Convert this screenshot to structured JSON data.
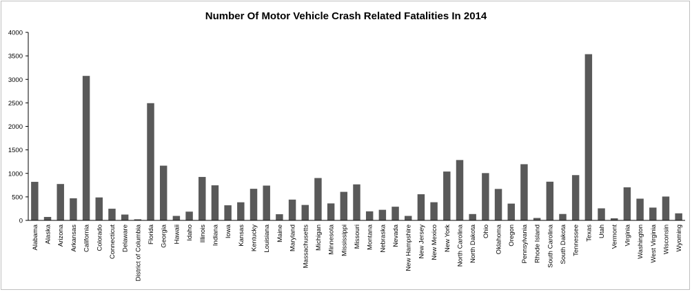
{
  "chart_data": {
    "type": "bar",
    "title": "Number Of Motor Vehicle Crash Related Fatalities In 2014",
    "xlabel": "",
    "ylabel": "",
    "ylim": [
      0,
      4000
    ],
    "yticks": [
      0,
      500,
      1000,
      1500,
      2000,
      2500,
      3000,
      3500,
      4000
    ],
    "grid": false,
    "legend": "none",
    "bar_color": "#595959",
    "categories": [
      "Alabama",
      "Alaska",
      "Arizona",
      "Arkansas",
      "California",
      "Colorado",
      "Connecticut",
      "Delaware",
      "District of Columbia",
      "Florida",
      "Georgia",
      "Hawaii",
      "Idaho",
      "Illinois",
      "Indiana",
      "Iowa",
      "Kansas",
      "Kentucky",
      "Louisiana",
      "Maine",
      "Maryland",
      "Massachusetts",
      "Michigan",
      "Minnesota",
      "Mississippi",
      "Missouri",
      "Montana",
      "Nebraska",
      "Nevada",
      "New Hampshire",
      "New Jersey",
      "New Mexico",
      "New York",
      "North Carolina",
      "North Dakota",
      "Ohio",
      "Oklahoma",
      "Oregon",
      "Pennsylvania",
      "Rhode Island",
      "South Carolina",
      "South Dakota",
      "Tennessee",
      "Texas",
      "Utah",
      "Vermont",
      "Virginia",
      "Washington",
      "West Virginia",
      "Wisconsin",
      "Wyoming"
    ],
    "values": [
      820,
      73,
      774,
      470,
      3074,
      488,
      248,
      124,
      23,
      2494,
      1164,
      95,
      186,
      924,
      746,
      321,
      385,
      672,
      740,
      131,
      442,
      328,
      901,
      361,
      607,
      766,
      192,
      225,
      291,
      95,
      556,
      386,
      1039,
      1284,
      135,
      1006,
      669,
      357,
      1195,
      51,
      823,
      136,
      963,
      3536,
      256,
      44,
      703,
      462,
      272,
      507,
      150
    ]
  }
}
